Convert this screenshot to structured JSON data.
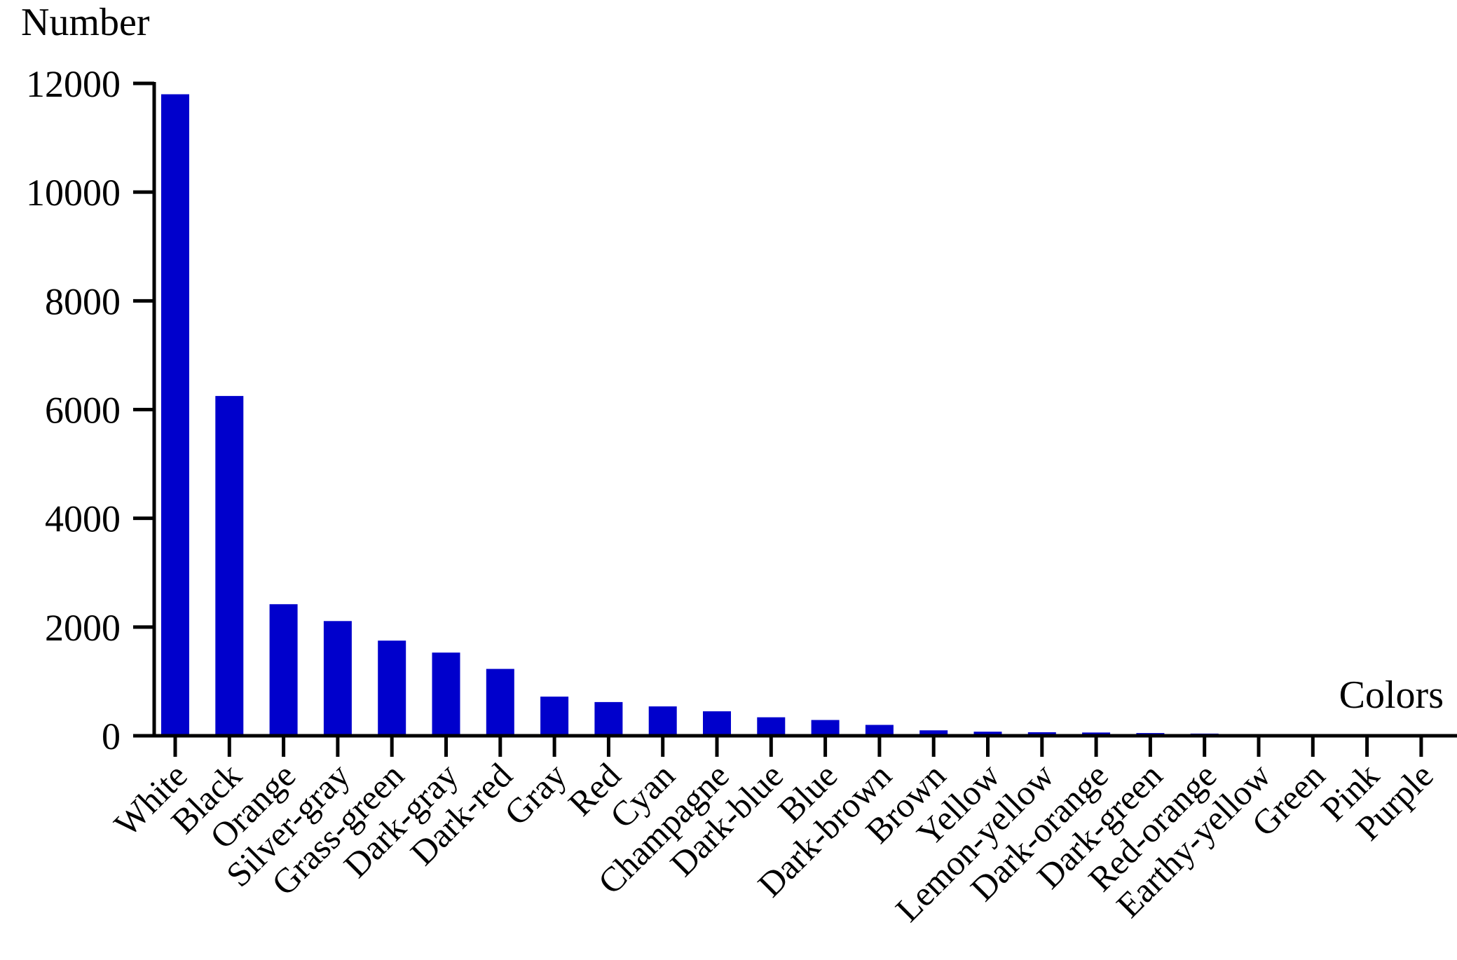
{
  "chart_data": {
    "type": "bar",
    "title": "",
    "ylabel": "Number",
    "xlabel": "Colors",
    "ylim": [
      0,
      12000
    ],
    "yticks": [
      0,
      2000,
      4000,
      6000,
      8000,
      10000,
      12000
    ],
    "grid": false,
    "bar_color": "#0000cc",
    "categories": [
      "White",
      "Black",
      "Orange",
      "Silver-gray",
      "Grass-green",
      "Dark-gray",
      "Dark-red",
      "Gray",
      "Red",
      "Cyan",
      "Champagne",
      "Dark-blue",
      "Blue",
      "Dark-brown",
      "Brown",
      "Yellow",
      "Lemon-yellow",
      "Dark-orange",
      "Dark-green",
      "Red-orange",
      "Earthy-yellow",
      "Green",
      "Pink",
      "Purple"
    ],
    "values": [
      11800,
      6250,
      2420,
      2110,
      1750,
      1530,
      1230,
      720,
      620,
      540,
      450,
      340,
      290,
      200,
      100,
      75,
      65,
      60,
      50,
      40,
      20,
      15,
      10,
      8
    ]
  }
}
